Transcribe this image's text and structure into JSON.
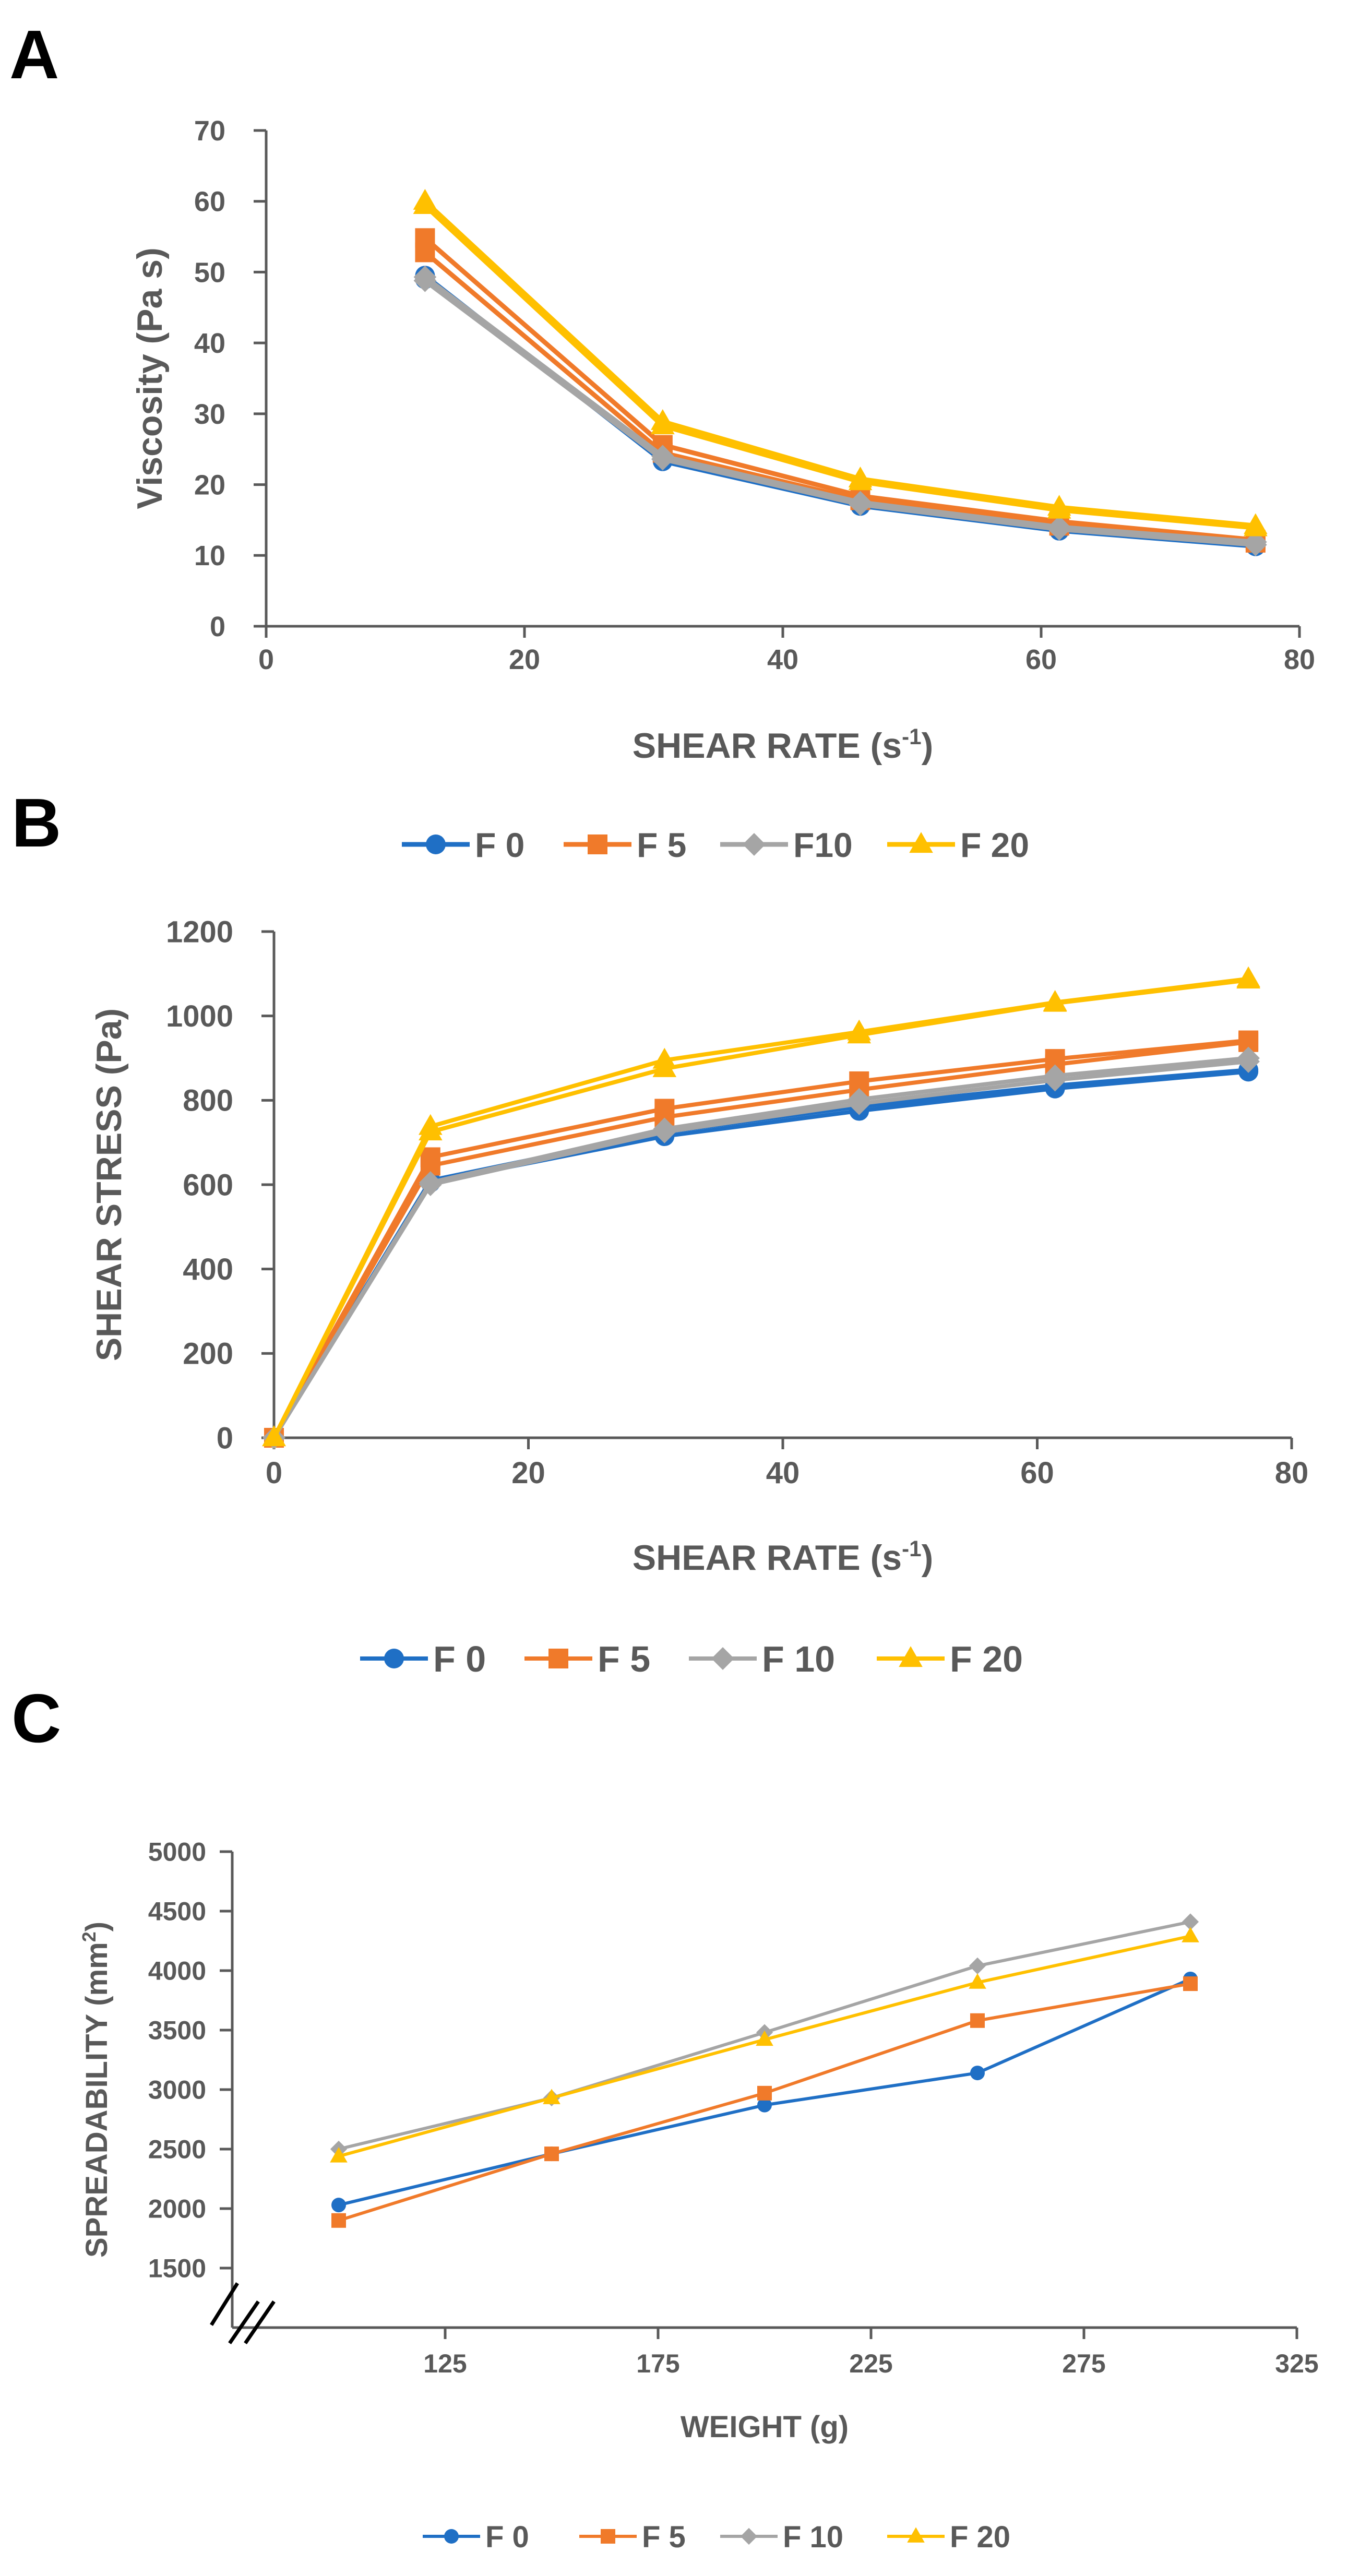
{
  "panels": [
    "A",
    "B",
    "C"
  ],
  "colors": {
    "F0": "#1f6fc5",
    "F5": "#f07a2a",
    "F10": "#a5a5a5",
    "F20": "#ffc000",
    "axis": "#595959"
  },
  "chart_data": [
    {
      "type": "line",
      "panel": "A",
      "title": "",
      "xlabel": "SHEAR RATE (s",
      "xlabel_sup": "-1",
      "xlabel_end": ")",
      "ylabel": "Viscosity (Pa s)",
      "xlim": [
        0,
        80
      ],
      "ylim": [
        0,
        70
      ],
      "xticks": [
        0,
        20,
        40,
        60,
        80
      ],
      "yticks": [
        0,
        10,
        20,
        30,
        40,
        50,
        60,
        70
      ],
      "series": [
        {
          "name": "F 0",
          "key": "F0",
          "marker": "circle",
          "x": [
            12.3,
            30.7,
            46.0,
            61.4,
            76.6
          ],
          "y": [
            49.5,
            23.3,
            17.0,
            13.5,
            11.3
          ]
        },
        {
          "name": "F 0",
          "key": "F0",
          "marker": "circle",
          "x": [
            12.3,
            30.7,
            46.0,
            61.4,
            76.6
          ],
          "y": [
            49.0,
            23.8,
            17.4,
            13.8,
            11.6
          ]
        },
        {
          "name": "F 5",
          "key": "F5",
          "marker": "square",
          "x": [
            12.3,
            30.7,
            46.0,
            61.4,
            76.6
          ],
          "y": [
            54.8,
            25.6,
            18.4,
            14.8,
            12.2
          ]
        },
        {
          "name": "F 5",
          "key": "F5",
          "marker": "square",
          "x": [
            12.3,
            30.7,
            46.0,
            61.4,
            76.6
          ],
          "y": [
            52.8,
            24.5,
            17.8,
            14.2,
            11.8
          ]
        },
        {
          "name": "F10",
          "key": "F10",
          "marker": "diamond",
          "x": [
            12.3,
            30.7,
            46.0,
            61.4,
            76.6
          ],
          "y": [
            49.3,
            24.0,
            17.5,
            14.0,
            11.9
          ]
        },
        {
          "name": "F10",
          "key": "F10",
          "marker": "diamond",
          "x": [
            12.3,
            30.7,
            46.0,
            61.4,
            76.6
          ],
          "y": [
            48.8,
            23.6,
            17.2,
            13.7,
            11.5
          ]
        },
        {
          "name": "F 20",
          "key": "F20",
          "marker": "triangle",
          "x": [
            12.3,
            30.7,
            46.0,
            61.4,
            76.6
          ],
          "y": [
            60.0,
            28.9,
            20.8,
            16.8,
            14.2
          ]
        },
        {
          "name": "F 20",
          "key": "F20",
          "marker": "triangle",
          "x": [
            12.3,
            30.7,
            46.0,
            61.4,
            76.6
          ],
          "y": [
            59.4,
            28.3,
            20.4,
            16.4,
            13.9
          ]
        }
      ],
      "legend": [
        "F 0",
        "F 5",
        "F10",
        "F 20"
      ],
      "legend_position": "bottom"
    },
    {
      "type": "line",
      "panel": "B",
      "title": "",
      "xlabel": "SHEAR RATE (s",
      "xlabel_sup": "-1",
      "xlabel_end": ")",
      "ylabel": "SHEAR STRESS (Pa)",
      "xlim": [
        0,
        80
      ],
      "ylim": [
        0,
        1200
      ],
      "xticks": [
        0,
        20,
        40,
        60,
        80
      ],
      "yticks": [
        0,
        200,
        400,
        600,
        800,
        1000,
        1200
      ],
      "series": [
        {
          "name": "F 0",
          "key": "F0",
          "marker": "circle",
          "x": [
            0,
            12.3,
            30.7,
            46.0,
            61.4,
            76.6
          ],
          "y": [
            0,
            605,
            715,
            775,
            828,
            868
          ]
        },
        {
          "name": "F 0",
          "key": "F0",
          "marker": "circle",
          "x": [
            0,
            12.3,
            30.7,
            46.0,
            61.4,
            76.6
          ],
          "y": [
            0,
            610,
            725,
            785,
            835,
            872
          ]
        },
        {
          "name": "F 5",
          "key": "F5",
          "marker": "square",
          "x": [
            0,
            12.3,
            30.7,
            46.0,
            61.4,
            76.6
          ],
          "y": [
            0,
            665,
            780,
            845,
            898,
            942
          ]
        },
        {
          "name": "F 5",
          "key": "F5",
          "marker": "square",
          "x": [
            0,
            12.3,
            30.7,
            46.0,
            61.4,
            76.6
          ],
          "y": [
            0,
            645,
            760,
            825,
            885,
            938
          ]
        },
        {
          "name": "F 10",
          "key": "F10",
          "marker": "diamond",
          "x": [
            0,
            12.3,
            30.7,
            46.0,
            61.4,
            76.6
          ],
          "y": [
            0,
            605,
            732,
            802,
            858,
            900
          ]
        },
        {
          "name": "F 10",
          "key": "F10",
          "marker": "diamond",
          "x": [
            0,
            12.3,
            30.7,
            46.0,
            61.4,
            76.6
          ],
          "y": [
            0,
            600,
            725,
            792,
            848,
            892
          ]
        },
        {
          "name": "F 20",
          "key": "F20",
          "marker": "triangle",
          "x": [
            0,
            12.3,
            30.7,
            46.0,
            61.4,
            76.6
          ],
          "y": [
            0,
            738,
            895,
            962,
            1032,
            1088
          ]
        },
        {
          "name": "F 20",
          "key": "F20",
          "marker": "triangle",
          "x": [
            0,
            12.3,
            30.7,
            46.0,
            61.4,
            76.6
          ],
          "y": [
            0,
            725,
            875,
            955,
            1030,
            1085
          ]
        }
      ],
      "legend": [
        "F 0",
        "F 5",
        "F 10",
        "F 20"
      ],
      "legend_position": "bottom"
    },
    {
      "type": "line",
      "panel": "C",
      "title": "",
      "xlabel": "WEIGHT (g)",
      "ylabel": "SPREADABILITY (mm",
      "ylabel_sup": "2",
      "ylabel_end": ")",
      "xlim": [
        75,
        325
      ],
      "ylim": [
        1000,
        5000
      ],
      "xticks": [
        125,
        175,
        225,
        275,
        325
      ],
      "yticks": [
        1500,
        2000,
        2500,
        3000,
        3500,
        4000,
        4500,
        5000
      ],
      "axis_break": true,
      "series": [
        {
          "name": "F 0",
          "key": "F0",
          "marker": "circle",
          "x": [
            100,
            150,
            200,
            250,
            300
          ],
          "y": [
            2030,
            2460,
            2870,
            3140,
            3930
          ]
        },
        {
          "name": "F 5",
          "key": "F5",
          "marker": "square",
          "x": [
            100,
            150,
            200,
            250,
            300
          ],
          "y": [
            1900,
            2460,
            2970,
            3580,
            3890
          ]
        },
        {
          "name": "F 10",
          "key": "F10",
          "marker": "diamond",
          "x": [
            100,
            150,
            200,
            250,
            300
          ],
          "y": [
            2500,
            2930,
            3480,
            4040,
            4410
          ]
        },
        {
          "name": "F 20",
          "key": "F20",
          "marker": "triangle",
          "x": [
            100,
            150,
            200,
            250,
            300
          ],
          "y": [
            2440,
            2930,
            3420,
            3900,
            4290
          ]
        }
      ],
      "legend": [
        "F 0",
        "F 5",
        "F 10",
        "F 20"
      ],
      "legend_position": "bottom"
    }
  ]
}
